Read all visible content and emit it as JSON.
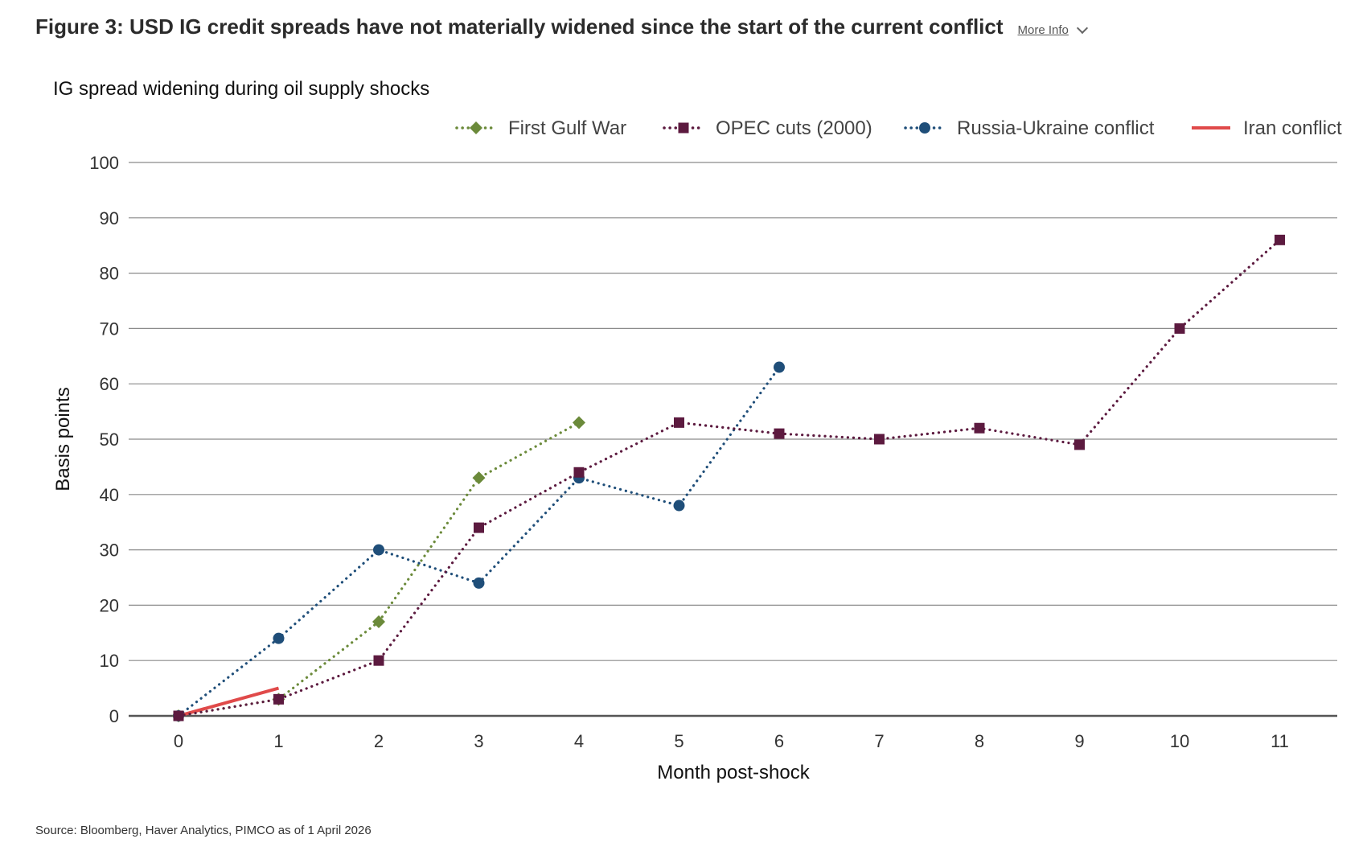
{
  "header": {
    "title": "Figure 3: USD IG credit spreads have not materially widened since the start of the current conflict",
    "more_info_label": "More Info",
    "more_info_icon": "chevron-down-icon"
  },
  "source": "Source: Bloomberg, Haver Analytics, PIMCO as of 1 April 2026",
  "chart_data": {
    "type": "line",
    "title": "IG spread widening during oil supply shocks",
    "xlabel": "Month post-shock",
    "ylabel": "Basis points",
    "xlim": [
      0,
      11
    ],
    "ylim": [
      0,
      100
    ],
    "x_ticks": [
      0,
      1,
      2,
      3,
      4,
      5,
      6,
      7,
      8,
      9,
      10,
      11
    ],
    "y_ticks": [
      0,
      10,
      20,
      30,
      40,
      50,
      60,
      70,
      80,
      90,
      100
    ],
    "grid": true,
    "legend_position": "top-right",
    "series": [
      {
        "name": "First Gulf War",
        "color": "#6b8a3a",
        "line": "dotted",
        "marker": "diamond",
        "x": [
          0,
          1,
          2,
          3,
          4
        ],
        "values": [
          0,
          3,
          17,
          43,
          53
        ]
      },
      {
        "name": "OPEC cuts (2000)",
        "color": "#5c1a3f",
        "line": "dotted",
        "marker": "square",
        "x": [
          0,
          1,
          2,
          3,
          4,
          5,
          6,
          7,
          8,
          9,
          10,
          11
        ],
        "values": [
          0,
          3,
          10,
          34,
          44,
          53,
          51,
          50,
          52,
          49,
          70,
          86
        ]
      },
      {
        "name": "Russia-Ukraine conflict",
        "color": "#1f4e79",
        "line": "dotted",
        "marker": "circle",
        "x": [
          0,
          1,
          2,
          3,
          4,
          5,
          6
        ],
        "values": [
          0,
          14,
          30,
          24,
          43,
          38,
          63
        ]
      },
      {
        "name": "Iran conflict",
        "color": "#e04a4a",
        "line": "solid",
        "marker": "none",
        "x": [
          0,
          1
        ],
        "values": [
          0,
          5
        ]
      }
    ]
  }
}
